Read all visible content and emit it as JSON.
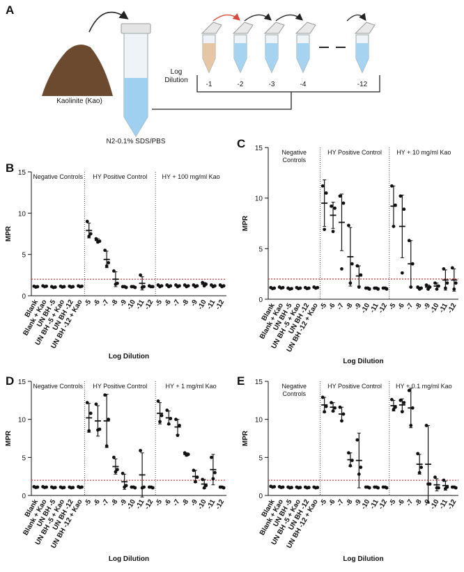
{
  "diagram": {
    "panel": "A",
    "soil_label": "Kaolinite (Kao)",
    "tube_label": "N2-0.1% SDS/PBS",
    "dilution_label": "Log Dilution",
    "tubes": [
      "-1",
      "-2",
      "-3",
      "-4",
      "-12"
    ]
  },
  "chart_data": [
    {
      "type": "dotplot",
      "panel": "B",
      "ylabel": "MPR",
      "xlabel": "Log Dilution",
      "ylim": [
        0,
        15
      ],
      "yticks": [
        0,
        5,
        10,
        15
      ],
      "threshold": 2,
      "threshold_color": "#e53935",
      "color": "#111111",
      "groups": [
        {
          "label": "Negative Controls",
          "categories": [
            "Blank",
            "Blank + Kao",
            "UN BH -5",
            "UN BH -5 + Kao",
            "UN BH -12",
            "UN BH -12 + Kao"
          ],
          "values": [
            1.1,
            1.15,
            1.05,
            1.1,
            1.1,
            1.15
          ],
          "errors": [
            0.05,
            0.05,
            0.05,
            0.05,
            0.05,
            0.05
          ],
          "points": [
            [
              1.15,
              1.1,
              1.05
            ],
            [
              1.2,
              1.15,
              1.1
            ],
            [
              1.1,
              1.05,
              1.0
            ],
            [
              1.15,
              1.1,
              1.05
            ],
            [
              1.15,
              1.1,
              1.05
            ],
            [
              1.2,
              1.15,
              1.1
            ]
          ]
        },
        {
          "label": "HY Positive Control",
          "categories": [
            "-5",
            "-6",
            "-7",
            "-8",
            "-9",
            "-10",
            "-11",
            "-12"
          ],
          "values": [
            7.9,
            6.7,
            4.4,
            2.0,
            1.1,
            1.1,
            1.5,
            1.1
          ],
          "errors": [
            0.9,
            0.2,
            1.0,
            0.9,
            0.1,
            0.1,
            0.8,
            0.1
          ],
          "points": [
            [
              9.0,
              7.5,
              7.2
            ],
            [
              6.9,
              6.6,
              6.5
            ],
            [
              5.5,
              4.0,
              3.6
            ],
            [
              3.0,
              1.5,
              1.4
            ],
            [
              1.1,
              1.0,
              1.1
            ],
            [
              1.1,
              1.0,
              1.1
            ],
            [
              2.5,
              1.1,
              1.0
            ],
            [
              1.2,
              1.1,
              1.1
            ]
          ]
        },
        {
          "label": "HY + 100 mg/ml Kao",
          "categories": [
            "-5",
            "-6",
            "-7",
            "-8",
            "-9",
            "-10",
            "-11",
            "-12"
          ],
          "values": [
            1.2,
            1.2,
            1.2,
            1.2,
            1.2,
            1.4,
            1.2,
            1.2
          ],
          "errors": [
            0.1,
            0.1,
            0.1,
            0.1,
            0.1,
            0.2,
            0.1,
            0.1
          ],
          "points": [
            [
              1.3,
              1.2,
              1.1
            ],
            [
              1.3,
              1.2,
              1.1
            ],
            [
              1.3,
              1.2,
              1.1
            ],
            [
              1.3,
              1.2,
              1.1
            ],
            [
              1.3,
              1.2,
              1.1
            ],
            [
              1.6,
              1.4,
              1.2
            ],
            [
              1.3,
              1.2,
              1.1
            ],
            [
              1.3,
              1.2,
              1.1
            ]
          ]
        }
      ]
    },
    {
      "type": "dotplot",
      "panel": "C",
      "ylabel": "MPR",
      "xlabel": "Log Dilution",
      "ylim": [
        0,
        15
      ],
      "yticks": [
        0,
        5,
        10,
        15
      ],
      "threshold": 2,
      "threshold_color": "#e53935",
      "color": "#111111",
      "groups": [
        {
          "label": "Negative Controls",
          "categories": [
            "Blank",
            "Blank + Kao",
            "UN BH -5",
            "UN BH -5 + Kao",
            "UN BH -12",
            "UN BH -12 + Kao"
          ],
          "values": [
            1.1,
            1.15,
            1.05,
            1.1,
            1.1,
            1.15
          ],
          "errors": [
            0.05,
            0.05,
            0.05,
            0.05,
            0.05,
            0.05
          ],
          "points": [
            [
              1.15,
              1.1,
              1.05
            ],
            [
              1.2,
              1.15,
              1.1
            ],
            [
              1.1,
              1.05,
              1.0
            ],
            [
              1.15,
              1.1,
              1.05
            ],
            [
              1.15,
              1.1,
              1.05
            ],
            [
              1.2,
              1.15,
              1.1
            ]
          ]
        },
        {
          "label": "HY Positive Control",
          "categories": [
            "-5",
            "-6",
            "-7",
            "-8",
            "-9",
            "-10",
            "-11",
            "-12"
          ],
          "values": [
            9.5,
            8.3,
            7.6,
            4.2,
            2.3,
            1.1,
            1.1,
            1.1
          ],
          "errors": [
            2.3,
            1.3,
            2.8,
            2.9,
            1.0,
            0.1,
            0.1,
            0.1
          ],
          "points": [
            [
              11.2,
              10.5,
              6.9
            ],
            [
              9.2,
              9.0,
              6.7
            ],
            [
              10.2,
              9.5,
              3.0
            ],
            [
              7.3,
              3.5,
              1.6
            ],
            [
              3.3,
              2.4,
              1.2
            ],
            [
              1.1,
              1.0,
              1.1
            ],
            [
              1.1,
              1.0,
              1.1
            ],
            [
              1.1,
              1.0,
              1.1
            ]
          ]
        },
        {
          "label": "HY + 10 mg/ml Kao",
          "categories": [
            "-5",
            "-6",
            "-7",
            "-8",
            "-9",
            "-10",
            "-11",
            "-12"
          ],
          "values": [
            9.2,
            7.2,
            3.5,
            1.1,
            1.2,
            1.3,
            1.9,
            1.9
          ],
          "errors": [
            2.0,
            3.1,
            2.3,
            0.1,
            0.2,
            0.3,
            1.0,
            1.1
          ],
          "points": [
            [
              11.2,
              9.3,
              7.2
            ],
            [
              10.2,
              8.9,
              2.6
            ],
            [
              5.8,
              3.5,
              1.2
            ],
            [
              1.2,
              1.1,
              1.0
            ],
            [
              1.4,
              1.2,
              1.0
            ],
            [
              1.6,
              1.3,
              1.0
            ],
            [
              3.0,
              1.6,
              1.1
            ],
            [
              3.1,
              1.6,
              1.0
            ]
          ]
        }
      ]
    },
    {
      "type": "dotplot",
      "panel": "D",
      "ylabel": "MPR",
      "xlabel": "Log Dilution",
      "ylim": [
        0,
        15
      ],
      "yticks": [
        0,
        5,
        10,
        15
      ],
      "threshold": 2,
      "threshold_color": "#e53935",
      "color": "#111111",
      "groups": [
        {
          "label": "Negative Controls",
          "categories": [
            "Blank",
            "Blank + Kao",
            "UN BH -5",
            "UN BH -5 + Kao",
            "UN BH -12",
            "UN BH -12 + Kao"
          ],
          "values": [
            1.1,
            1.1,
            1.05,
            1.05,
            1.05,
            1.1
          ],
          "errors": [
            0.05,
            0.05,
            0.05,
            0.05,
            0.05,
            0.05
          ],
          "points": [
            [
              1.15,
              1.1,
              1.05
            ],
            [
              1.15,
              1.1,
              1.05
            ],
            [
              1.1,
              1.05,
              1.0
            ],
            [
              1.1,
              1.05,
              1.0
            ],
            [
              1.1,
              1.05,
              1.0
            ],
            [
              1.15,
              1.1,
              1.05
            ]
          ]
        },
        {
          "label": "HY Positive Control",
          "categories": [
            "-5",
            "-6",
            "-7",
            "-8",
            "-9",
            "-10",
            "-11",
            "-12"
          ],
          "values": [
            10.2,
            9.8,
            9.8,
            3.8,
            1.8,
            1.1,
            2.7,
            1.1
          ],
          "errors": [
            1.9,
            2.0,
            3.5,
            1.0,
            1.0,
            0.1,
            2.9,
            0.1
          ],
          "points": [
            [
              12.2,
              10.8,
              8.5
            ],
            [
              12.0,
              8.7,
              8.6
            ],
            [
              13.2,
              10.0,
              6.5
            ],
            [
              5.0,
              3.4,
              3.1
            ],
            [
              2.9,
              1.3,
              1.1
            ],
            [
              1.1,
              1.0,
              1.1
            ],
            [
              5.9,
              1.1,
              1.0
            ],
            [
              1.1,
              1.0,
              1.1
            ]
          ]
        },
        {
          "label": "HY + 1 mg/ml Kao",
          "categories": [
            "-5",
            "-6",
            "-7",
            "-8",
            "-9",
            "-10",
            "-11",
            "-12"
          ],
          "values": [
            10.8,
            10.2,
            9.0,
            5.4,
            2.5,
            1.5,
            3.4,
            1.1
          ],
          "errors": [
            1.4,
            0.9,
            1.0,
            0.2,
            0.8,
            0.6,
            2.0,
            0.1
          ],
          "points": [
            [
              12.4,
              10.5,
              9.7
            ],
            [
              11.2,
              10.1,
              9.4
            ],
            [
              10.0,
              9.2,
              7.9
            ],
            [
              5.6,
              5.4,
              5.3
            ],
            [
              3.3,
              2.4,
              1.8
            ],
            [
              2.1,
              1.3,
              1.0
            ],
            [
              5.0,
              3.0,
              2.2
            ],
            [
              1.1,
              1.0,
              1.1
            ]
          ]
        }
      ]
    },
    {
      "type": "dotplot",
      "panel": "E",
      "ylabel": "MPR",
      "xlabel": "Log Dilution",
      "ylim": [
        0,
        15
      ],
      "yticks": [
        0,
        5,
        10,
        15
      ],
      "threshold": 2,
      "threshold_color": "#e53935",
      "color": "#111111",
      "groups": [
        {
          "label": "Negative Controls",
          "categories": [
            "Blank",
            "Blank + Kao",
            "UN BH -5",
            "UN BH -5 + Kao",
            "UN BH -12",
            "UN BH -12 + Kao"
          ],
          "values": [
            1.15,
            1.1,
            1.05,
            1.05,
            1.05,
            1.05
          ],
          "errors": [
            0.05,
            0.05,
            0.05,
            0.05,
            0.05,
            0.05
          ],
          "points": [
            [
              1.2,
              1.15,
              1.1
            ],
            [
              1.15,
              1.1,
              1.05
            ],
            [
              1.1,
              1.05,
              1.0
            ],
            [
              1.1,
              1.05,
              1.0
            ],
            [
              1.1,
              1.05,
              1.0
            ],
            [
              1.1,
              1.05,
              1.0
            ]
          ]
        },
        {
          "label": "HY Positive Control",
          "categories": [
            "-5",
            "-6",
            "-7",
            "-8",
            "-9",
            "-10",
            "-11",
            "-12"
          ],
          "values": [
            11.9,
            11.6,
            10.7,
            4.7,
            4.6,
            1.1,
            1.1,
            1.1
          ],
          "errors": [
            1.0,
            0.6,
            0.9,
            0.9,
            3.6,
            0.1,
            0.1,
            0.1
          ],
          "points": [
            [
              12.9,
              11.7,
              11.0
            ],
            [
              12.2,
              11.5,
              11.1
            ],
            [
              11.6,
              10.7,
              9.8
            ],
            [
              5.6,
              4.6,
              3.9
            ],
            [
              7.3,
              3.7,
              2.8
            ],
            [
              1.1,
              1.0,
              1.1
            ],
            [
              1.1,
              1.0,
              1.1
            ],
            [
              1.1,
              1.0,
              1.1
            ]
          ]
        },
        {
          "label": "HY + 0.1 mg/ml Kao",
          "categories": [
            "-5",
            "-6",
            "-7",
            "-8",
            "-9",
            "-10",
            "-11",
            "-12"
          ],
          "values": [
            11.8,
            11.9,
            11.5,
            4.1,
            4.1,
            1.4,
            1.3,
            1.1
          ],
          "errors": [
            0.7,
            0.8,
            2.6,
            1.3,
            5.1,
            0.8,
            0.6,
            0.1
          ],
          "points": [
            [
              12.6,
              11.6,
              11.3
            ],
            [
              12.5,
              12.2,
              11.0
            ],
            [
              13.8,
              11.5,
              9.2
            ],
            [
              5.5,
              3.7,
              3.0
            ],
            [
              9.2,
              1.5,
              1.5
            ],
            [
              2.4,
              1.0,
              1.0
            ],
            [
              2.0,
              1.1,
              0.9
            ],
            [
              1.1,
              1.0,
              1.1
            ]
          ]
        }
      ]
    }
  ]
}
